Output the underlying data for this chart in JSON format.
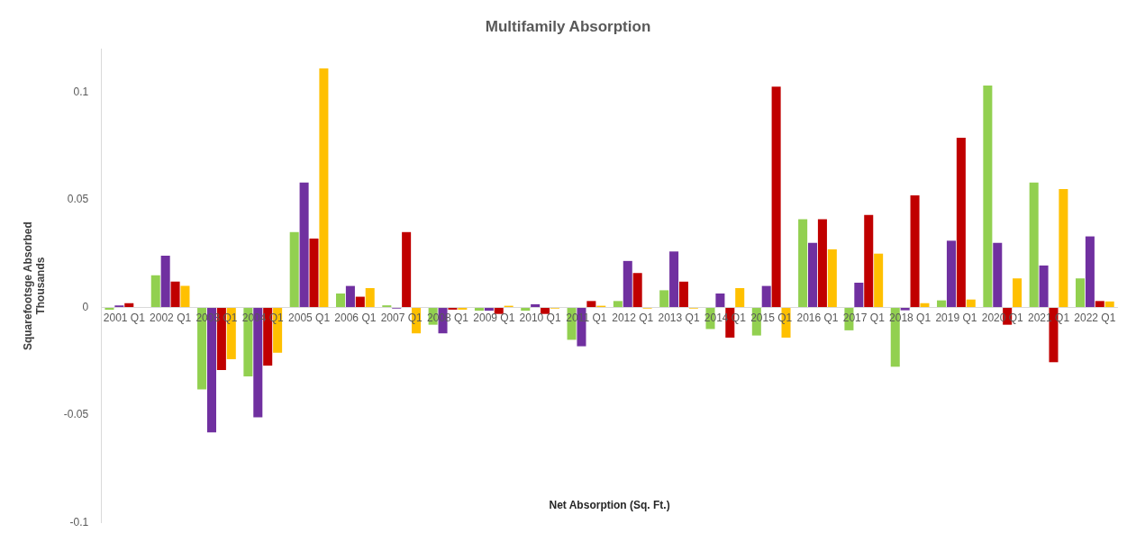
{
  "chart_data": {
    "type": "bar",
    "title": "Multifamily Absorption",
    "xlabel": "Net Absorption (Sq. Ft.)",
    "ylabel": "Squarefootsge Absorbed",
    "annotations": [
      "Thousands"
    ],
    "categories": [
      "2001 Q1",
      "2002 Q1",
      "2003 Q1",
      "2004 Q1",
      "2005 Q1",
      "2006 Q1",
      "2007 Q1",
      "2008 Q1",
      "2009 Q1",
      "2010 Q1",
      "2011 Q1",
      "2012 Q1",
      "2013 Q1",
      "2014 Q1",
      "2015 Q1",
      "2016 Q1",
      "2017 Q1",
      "2018 Q1",
      "2019 Q1",
      "2020 Q1",
      "2021 Q1",
      "2022 Q1"
    ],
    "series": [
      {
        "color": "#92d050",
        "values": [
          -0.001,
          0.015,
          -0.038,
          -0.032,
          0.035,
          0.0065,
          0.001,
          -0.008,
          -0.0015,
          -0.0015,
          -0.015,
          0.003,
          0.008,
          -0.01,
          -0.013,
          0.041,
          -0.0106,
          -0.0275,
          0.0033,
          0.103,
          0.058,
          0.0135
        ]
      },
      {
        "color": "#7030a0",
        "values": [
          0.001,
          0.024,
          -0.058,
          -0.051,
          0.058,
          0.01,
          -0.0005,
          -0.012,
          -0.0015,
          0.0015,
          -0.018,
          0.0216,
          0.026,
          0.0065,
          0.01,
          0.03,
          0.0115,
          -0.0013,
          0.031,
          0.03,
          0.0195,
          0.033
        ]
      },
      {
        "color": "#c00000",
        "values": [
          0.002,
          0.012,
          -0.029,
          -0.027,
          0.032,
          0.005,
          0.035,
          -0.001,
          -0.003,
          -0.003,
          0.003,
          0.016,
          0.012,
          -0.014,
          0.1025,
          0.041,
          0.043,
          0.052,
          0.0788,
          -0.008,
          -0.0254,
          0.003
        ]
      },
      {
        "color": "#ffc000",
        "values": [
          0,
          0.01,
          -0.024,
          -0.021,
          0.111,
          0.009,
          -0.012,
          -0.001,
          0.0008,
          -0.0005,
          0.0008,
          -0.0005,
          -0.0005,
          0.009,
          -0.014,
          0.027,
          0.025,
          0.002,
          0.0037,
          0.0135,
          0.055,
          0.0028
        ]
      }
    ],
    "ylim": [
      -0.1,
      0.12
    ],
    "yticks": [
      -0.1,
      -0.05,
      0,
      0.05,
      0.1
    ],
    "grid": false,
    "legend": false
  }
}
